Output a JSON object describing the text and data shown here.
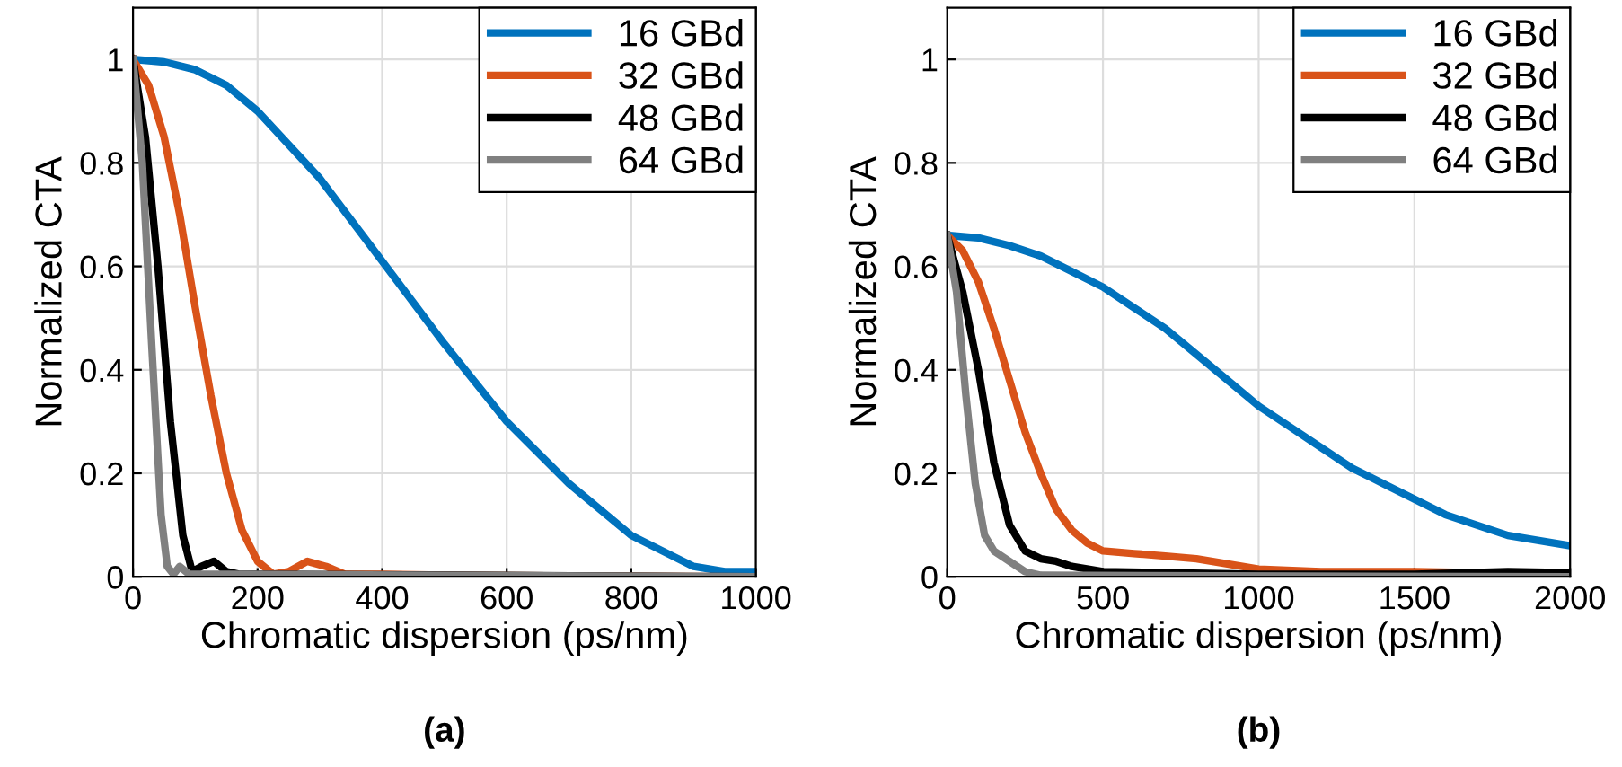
{
  "chart_data": [
    {
      "type": "line",
      "xlabel": "Chromatic dispersion (ps/nm)",
      "ylabel": "Normalized CTA",
      "annotations": [
        "(a)"
      ],
      "xlim": [
        0,
        1000
      ],
      "ylim": [
        0,
        1.1
      ],
      "xticks": [
        0,
        200,
        400,
        600,
        800,
        1000
      ],
      "yticks": [
        0,
        0.2,
        0.4,
        0.6,
        0.8,
        1
      ],
      "grid": true,
      "legend": "top right",
      "series": [
        {
          "name": "16 GBd",
          "color": "#0072bd",
          "x": [
            0,
            50,
            100,
            150,
            200,
            300,
            400,
            500,
            600,
            700,
            800,
            900,
            950,
            1000
          ],
          "values": [
            1,
            0.995,
            0.98,
            0.95,
            0.9,
            0.77,
            0.61,
            0.45,
            0.3,
            0.18,
            0.08,
            0.02,
            0.01,
            0.01
          ]
        },
        {
          "name": "32 GBd",
          "color": "#d95319",
          "x": [
            0,
            25,
            50,
            75,
            100,
            125,
            150,
            175,
            200,
            225,
            250,
            280,
            310,
            340,
            400,
            500,
            1000
          ],
          "values": [
            1,
            0.95,
            0.85,
            0.7,
            0.52,
            0.35,
            0.2,
            0.09,
            0.03,
            0.005,
            0.01,
            0.03,
            0.02,
            0.005,
            0.005,
            0.003,
            0
          ]
        },
        {
          "name": "48 GBd",
          "color": "#000000",
          "x": [
            0,
            20,
            40,
            60,
            80,
            95,
            110,
            130,
            150,
            170,
            200,
            1000
          ],
          "values": [
            1,
            0.85,
            0.6,
            0.3,
            0.08,
            0.01,
            0.02,
            0.03,
            0.01,
            0.005,
            0.005,
            0
          ]
        },
        {
          "name": "64 GBd",
          "color": "#808080",
          "x": [
            0,
            15,
            30,
            45,
            55,
            65,
            75,
            90,
            1000
          ],
          "values": [
            1,
            0.8,
            0.45,
            0.12,
            0.02,
            0.005,
            0.02,
            0.005,
            0
          ]
        }
      ]
    },
    {
      "type": "line",
      "xlabel": "Chromatic dispersion (ps/nm)",
      "ylabel": "Normalized CTA",
      "annotations": [
        "(b)"
      ],
      "xlim": [
        0,
        2000
      ],
      "ylim": [
        0,
        1.1
      ],
      "xticks": [
        0,
        500,
        1000,
        1500,
        2000
      ],
      "yticks": [
        0,
        0.2,
        0.4,
        0.6,
        0.8,
        1
      ],
      "grid": true,
      "legend": "top right",
      "series": [
        {
          "name": "16 GBd",
          "color": "#0072bd",
          "x": [
            0,
            100,
            200,
            300,
            400,
            500,
            600,
            700,
            800,
            900,
            1000,
            1100,
            1200,
            1300,
            1400,
            1500,
            1600,
            1700,
            1800,
            1900,
            2000
          ],
          "values": [
            0.66,
            0.655,
            0.64,
            0.62,
            0.59,
            0.56,
            0.52,
            0.48,
            0.43,
            0.38,
            0.33,
            0.29,
            0.25,
            0.21,
            0.18,
            0.15,
            0.12,
            0.1,
            0.08,
            0.07,
            0.06
          ]
        },
        {
          "name": "32 GBd",
          "color": "#d95319",
          "x": [
            0,
            50,
            100,
            150,
            200,
            250,
            300,
            350,
            400,
            450,
            500,
            600,
            700,
            800,
            900,
            1000,
            1200,
            1500,
            2000
          ],
          "values": [
            0.66,
            0.63,
            0.57,
            0.48,
            0.38,
            0.28,
            0.2,
            0.13,
            0.09,
            0.065,
            0.05,
            0.045,
            0.04,
            0.035,
            0.025,
            0.015,
            0.01,
            0.01,
            0.005
          ]
        },
        {
          "name": "48 GBd",
          "color": "#000000",
          "x": [
            0,
            50,
            100,
            150,
            200,
            250,
            300,
            350,
            400,
            500,
            1000,
            1500,
            1800,
            2000
          ],
          "values": [
            0.66,
            0.55,
            0.4,
            0.22,
            0.1,
            0.05,
            0.035,
            0.03,
            0.02,
            0.01,
            0.005,
            0.005,
            0.01,
            0.008
          ]
        },
        {
          "name": "64 GBd",
          "color": "#808080",
          "x": [
            0,
            30,
            60,
            90,
            120,
            150,
            200,
            250,
            300,
            2000
          ],
          "values": [
            0.66,
            0.55,
            0.35,
            0.18,
            0.08,
            0.05,
            0.03,
            0.01,
            0.003,
            0
          ]
        }
      ]
    }
  ]
}
